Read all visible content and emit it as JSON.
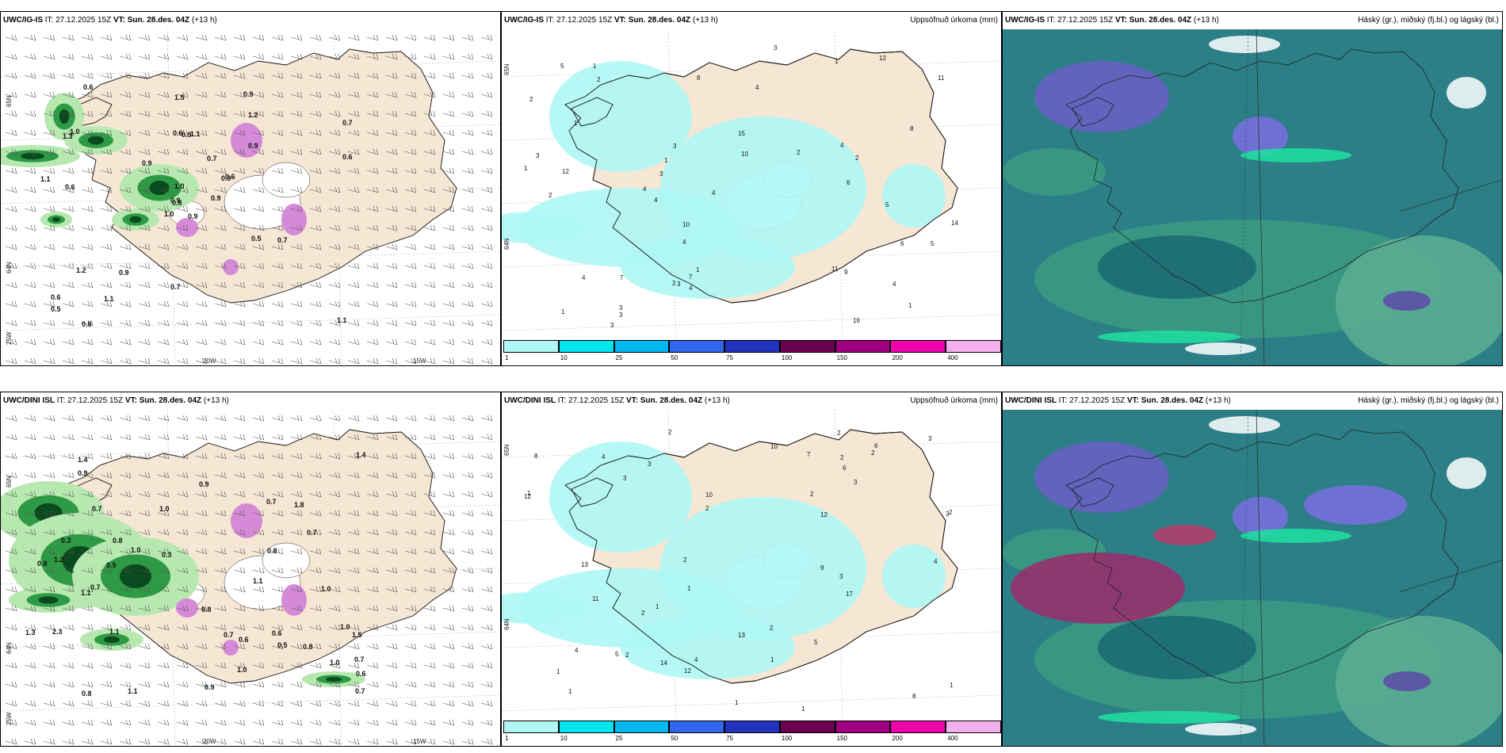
{
  "panels": [
    {
      "id": "p1",
      "model": "UWC/IG-IS",
      "it_label": "IT:",
      "it": "27.12.2025 15Z",
      "vt_label": "VT: Sun. 28.des. 04Z",
      "lead": "(+13 h)",
      "field_title": "",
      "type": "wind",
      "axis_labels": [
        "20W",
        "15W",
        "65N",
        "64N",
        "25W"
      ],
      "values": [
        "0.9",
        "1.3",
        "0.8",
        "0.6",
        "0.9",
        "0.9",
        "0.9",
        "1.1",
        "1.2",
        "0.9",
        "0.6",
        "1.1",
        "0.6",
        "0.7",
        "1.0",
        "0.9",
        "0.8",
        "0.6",
        "0.7",
        "1.2",
        "0.9",
        "0.5",
        "1.1",
        "0.9",
        "0.6",
        "0.7",
        "1.0",
        "1.5",
        "1.1",
        "0.5",
        "0.6",
        "0.9",
        "0.7",
        "1.0"
      ]
    },
    {
      "id": "p2",
      "model": "UWC/IG-IS",
      "it_label": "IT:",
      "it": "27.12.2025 15Z",
      "vt_label": "VT: Sun. 28.des. 04Z",
      "lead": "(+13 h)",
      "field_title": "Uppsöfnuð úrkoma (mm)",
      "type": "precip",
      "axis_labels": [
        "65N",
        "64N"
      ],
      "values": [
        "1",
        "1",
        "1",
        "7",
        "12",
        "9",
        "5",
        "2",
        "4",
        "10",
        "16",
        "11",
        "3",
        "1",
        "1",
        "5",
        "8",
        "14",
        "11",
        "12",
        "5",
        "7",
        "6",
        "3",
        "4",
        "10",
        "4",
        "4",
        "3",
        "2",
        "2",
        "2",
        "3",
        "4",
        "3",
        "3",
        "4",
        "4",
        "1",
        "6",
        "3",
        "2",
        "8",
        "15",
        "3",
        "1",
        "2",
        "1",
        "4",
        "4"
      ],
      "colorbar": {
        "ticks": [
          "1",
          "10",
          "25",
          "50",
          "75",
          "100",
          "150",
          "200",
          "400"
        ],
        "colors": [
          "#aef7f5",
          "#00e5ee",
          "#00b8f0",
          "#3366ee",
          "#2233bb",
          "#6a0050",
          "#a00080",
          "#ee00aa",
          "#f4b0ee"
        ]
      }
    },
    {
      "id": "p3",
      "model": "UWC/IG-IS",
      "it_label": "IT:",
      "it": "27.12.2025 15Z",
      "vt_label": "VT: Sun. 28.des. 04Z",
      "lead": "(+13 h)",
      "field_title": "Háský (gr.), miðský (fj.bl.) og lágský (bl.)",
      "type": "cloud",
      "axis_labels": [],
      "values": []
    },
    {
      "id": "p4",
      "model": "UWC/DINI ISL",
      "it_label": "IT:",
      "it": "27.12.2025 15Z",
      "vt_label": "VT: Sun. 28.des. 04Z",
      "lead": "(+13 h)",
      "field_title": "",
      "type": "wind",
      "axis_labels": [
        "20W",
        "15W",
        "65N",
        "64N",
        "25W"
      ],
      "values": [
        "0.9",
        "0.5",
        "1.0",
        "1.3",
        "0.8",
        "1.0",
        "1.1",
        "0.9",
        "0.8",
        "0.7",
        "1.0",
        "0.5",
        "1.8",
        "0.8",
        "0.7",
        "1.0",
        "1.1",
        "0.8",
        "0.6",
        "0.7",
        "1.2",
        "0.8",
        "0.3",
        "1.1",
        "0.6",
        "0.6",
        "1.4",
        "0.3",
        "1.5",
        "0.7",
        "0.8",
        "1.0",
        "2.3",
        "1.1",
        "0.7",
        "0.7",
        "1.4",
        "1.0",
        "0.9",
        "0.7"
      ]
    },
    {
      "id": "p5",
      "model": "UWC/DINI ISL",
      "it_label": "IT:",
      "it": "27.12.2025 15Z",
      "vt_label": "VT: Sun. 28.des. 04Z",
      "lead": "(+13 h)",
      "field_title": "Uppsöfnuð úrkoma (mm)",
      "type": "precip",
      "axis_labels": [
        "65N",
        "64N"
      ],
      "values": [
        "1",
        "1",
        "2",
        "1",
        "1",
        "1",
        "2",
        "5",
        "8",
        "6",
        "13",
        "12",
        "8",
        "7",
        "2",
        "2",
        "1",
        "1",
        "13",
        "4",
        "5",
        "9",
        "6",
        "10",
        "14",
        "17",
        "11",
        "4",
        "3",
        "3",
        "2",
        "2",
        "3",
        "4",
        "12",
        "12",
        "10",
        "2",
        "3",
        "2",
        "1",
        "2",
        "2",
        "3",
        "1",
        "2",
        "3",
        "4"
      ],
      "colorbar": {
        "ticks": [
          "1",
          "10",
          "25",
          "50",
          "75",
          "100",
          "150",
          "200",
          "400"
        ],
        "colors": [
          "#aef7f5",
          "#00e5ee",
          "#00b8f0",
          "#3366ee",
          "#2233bb",
          "#6a0050",
          "#a00080",
          "#ee00aa",
          "#f4b0ee"
        ]
      }
    },
    {
      "id": "p6",
      "model": "UWC/DINI ISL",
      "it_label": "IT:",
      "it": "27.12.2025 15Z",
      "vt_label": "VT: Sun. 28.des. 04Z",
      "lead": "(+13 h)",
      "field_title": "Háský (gr.), miðský (fj.bl.) og lágský (bl.)",
      "type": "cloud",
      "axis_labels": [],
      "values": []
    }
  ]
}
